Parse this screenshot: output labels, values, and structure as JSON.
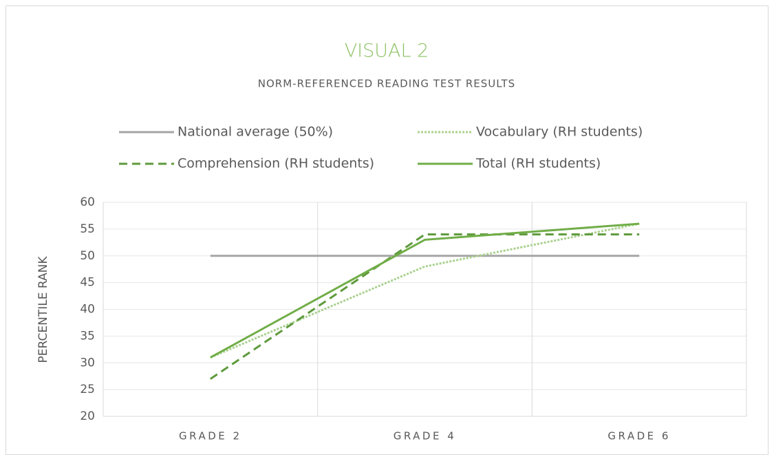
{
  "chart_data": {
    "type": "line",
    "title": "VISUAL 2",
    "subtitle": "NORM-REFERENCED READING TEST RESULTS",
    "y_label": "PERCENTILE RANK",
    "categories": [
      "GRADE 2",
      "GRADE 4",
      "GRADE 6"
    ],
    "series": [
      {
        "name": "National average (50%)",
        "color": "#a5a5a5",
        "style": "solid",
        "values": [
          50,
          50,
          50
        ]
      },
      {
        "name": "Vocabulary (RH students)",
        "color": "#a9d18e",
        "style": "dotted",
        "values": [
          31,
          48,
          56
        ]
      },
      {
        "name": "Comprehension (RH students)",
        "color": "#5e9a3c",
        "style": "dashed",
        "values": [
          27,
          54,
          54
        ]
      },
      {
        "name": "Total (RH students)",
        "color": "#70ad47",
        "style": "solid",
        "values": [
          31,
          53,
          56
        ]
      }
    ],
    "ylim": [
      20,
      60
    ],
    "yticks": [
      20,
      25,
      30,
      35,
      40,
      45,
      50,
      55,
      60
    ],
    "grid": true,
    "legend": "top"
  }
}
